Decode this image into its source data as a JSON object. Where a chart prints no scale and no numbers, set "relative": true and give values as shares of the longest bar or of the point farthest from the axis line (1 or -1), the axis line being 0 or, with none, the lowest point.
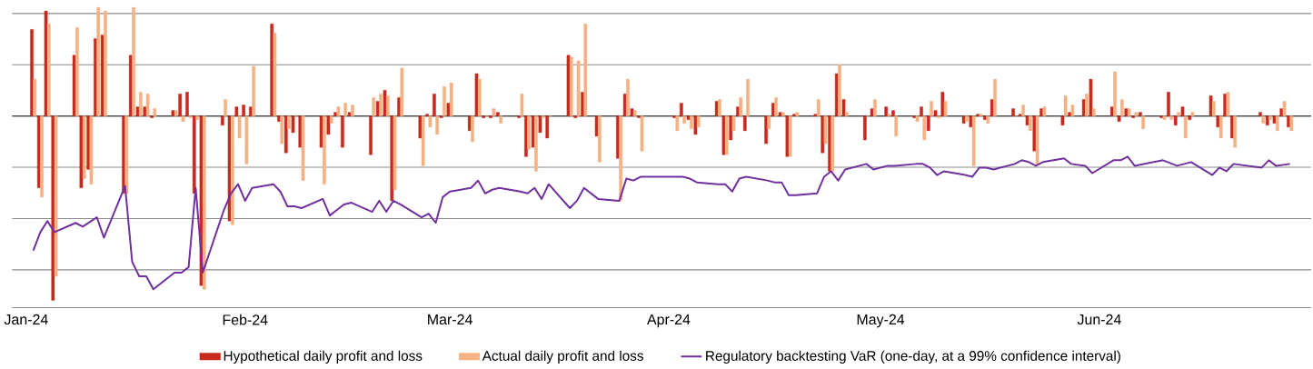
{
  "chart_data": {
    "type": "bar",
    "relative": true,
    "grid": "y",
    "legend": "bottom",
    "tick_labels": "x",
    "xlim": [
      "2023-12-30",
      "2024-07-01"
    ],
    "xticks": [
      {
        "value": "2024-01-01",
        "label": "Jan-24"
      },
      {
        "value": "2024-02-01",
        "label": "Feb-24"
      },
      {
        "value": "2024-03-01",
        "label": "Mar-24"
      },
      {
        "value": "2024-04-01",
        "label": "Apr-24"
      },
      {
        "value": "2024-05-01",
        "label": "May-24"
      },
      {
        "value": "2024-06-01",
        "label": "Jun-24"
      }
    ],
    "x": [
      "2024-01-02",
      "2024-01-03",
      "2024-01-04",
      "2024-01-05",
      "2024-01-08",
      "2024-01-09",
      "2024-01-10",
      "2024-01-11",
      "2024-01-12",
      "2024-01-15",
      "2024-01-16",
      "2024-01-17",
      "2024-01-18",
      "2024-01-19",
      "2024-01-22",
      "2024-01-23",
      "2024-01-24",
      "2024-01-25",
      "2024-01-26",
      "2024-01-29",
      "2024-01-30",
      "2024-01-31",
      "2024-02-01",
      "2024-02-02",
      "2024-02-05",
      "2024-02-06",
      "2024-02-07",
      "2024-02-08",
      "2024-02-09",
      "2024-02-12",
      "2024-02-13",
      "2024-02-14",
      "2024-02-15",
      "2024-02-16",
      "2024-02-19",
      "2024-02-20",
      "2024-02-21",
      "2024-02-22",
      "2024-02-23",
      "2024-02-26",
      "2024-02-27",
      "2024-02-28",
      "2024-02-29",
      "2024-03-01",
      "2024-03-04",
      "2024-03-05",
      "2024-03-06",
      "2024-03-07",
      "2024-03-08",
      "2024-03-11",
      "2024-03-12",
      "2024-03-13",
      "2024-03-14",
      "2024-03-15",
      "2024-03-18",
      "2024-03-19",
      "2024-03-20",
      "2024-03-22",
      "2024-03-25",
      "2024-03-26",
      "2024-03-27",
      "2024-03-28",
      "2024-04-02",
      "2024-04-03",
      "2024-04-04",
      "2024-04-05",
      "2024-04-08",
      "2024-04-09",
      "2024-04-10",
      "2024-04-11",
      "2024-04-12",
      "2024-04-15",
      "2024-04-16",
      "2024-04-17",
      "2024-04-18",
      "2024-04-19",
      "2024-04-22",
      "2024-04-23",
      "2024-04-24",
      "2024-04-25",
      "2024-04-26",
      "2024-04-29",
      "2024-04-30",
      "2024-05-02",
      "2024-05-03",
      "2024-05-06",
      "2024-05-07",
      "2024-05-08",
      "2024-05-09",
      "2024-05-10",
      "2024-05-13",
      "2024-05-14",
      "2024-05-15",
      "2024-05-16",
      "2024-05-17",
      "2024-05-20",
      "2024-05-21",
      "2024-05-22",
      "2024-05-23",
      "2024-05-24",
      "2024-05-27",
      "2024-05-28",
      "2024-05-30",
      "2024-05-31",
      "2024-06-03",
      "2024-06-04",
      "2024-06-05",
      "2024-06-06",
      "2024-06-07",
      "2024-06-10",
      "2024-06-11",
      "2024-06-12",
      "2024-06-13",
      "2024-06-14",
      "2024-06-17",
      "2024-06-18",
      "2024-06-19",
      "2024-06-20",
      "2024-06-24",
      "2024-06-25",
      "2024-06-26",
      "2024-06-27",
      "2024-06-28"
    ],
    "series": [
      {
        "name": "Hypothetical daily profit and loss",
        "color": "#c8281e",
        "values": [
          0.47,
          -0.39,
          0.57,
          -1.0,
          0.33,
          -0.39,
          -0.29,
          0.42,
          0.44,
          -0.42,
          0.33,
          0.05,
          0.05,
          -0.01,
          0.03,
          0.12,
          0.13,
          -0.42,
          -0.92,
          -0.05,
          -0.57,
          0.05,
          0.06,
          0.05,
          0.5,
          -0.03,
          -0.2,
          -0.09,
          -0.17,
          -0.17,
          -0.1,
          0.02,
          -0.17,
          0.02,
          -0.21,
          0.08,
          0.14,
          -0.46,
          0.1,
          -0.12,
          0.01,
          0.12,
          -0.01,
          0.07,
          -0.08,
          0.23,
          -0.01,
          -0.01,
          0.02,
          -0.01,
          -0.22,
          -0.17,
          -0.09,
          -0.12,
          0.33,
          -0.01,
          0.13,
          -0.11,
          -0.23,
          0.12,
          0.04,
          -0.01,
          -0.01,
          0.07,
          -0.02,
          -0.1,
          0.08,
          -0.21,
          -0.13,
          0.05,
          -0.08,
          -0.15,
          0.07,
          0.02,
          -0.22,
          0.01,
          0.01,
          -0.2,
          -0.3,
          0.23,
          0.09,
          -0.13,
          0.04,
          0.05,
          0.03,
          -0.01,
          0.05,
          -0.08,
          0.03,
          0.13,
          -0.04,
          -0.06,
          0.01,
          -0.02,
          0.09,
          0.04,
          0.01,
          -0.05,
          -0.19,
          0.04,
          -0.05,
          0.02,
          0.09,
          0.2,
          0.05,
          -0.03,
          0.04,
          -0.01,
          0.02,
          -0.01,
          0.13,
          -0.05,
          0.05,
          -0.02,
          0.11,
          -0.06,
          0.12,
          -0.12,
          0.02,
          -0.05,
          -0.04,
          0.04,
          -0.06
        ]
      },
      {
        "name": "Actual daily profit and loss",
        "color": "#f4b183",
        "values": [
          0.2,
          -0.44,
          0.5,
          -0.87,
          0.48,
          -0.34,
          -0.37,
          0.59,
          0.57,
          -0.42,
          0.59,
          0.13,
          0.12,
          0.04,
          0.03,
          -0.03,
          -0.01,
          -0.02,
          -0.94,
          0.09,
          -0.59,
          -0.12,
          -0.26,
          0.27,
          0.45,
          -0.15,
          -0.07,
          0,
          -0.35,
          -0.37,
          -0.04,
          0.05,
          0.07,
          0.06,
          0.1,
          0.12,
          0.11,
          -0.4,
          0.26,
          -0.27,
          -0.06,
          -0.1,
          0.16,
          0.18,
          -0.14,
          0.2,
          0,
          0.04,
          -0.04,
          0.12,
          -0.18,
          -0.3,
          -0.01,
          0,
          0.32,
          0.3,
          0.5,
          -0.25,
          -0.46,
          0.2,
          0.03,
          -0.19,
          -0.08,
          -0.04,
          -0.07,
          -0.06,
          0.09,
          -0.21,
          -0.08,
          0.1,
          0.2,
          -0.07,
          0.1,
          0.02,
          -0.22,
          0.02,
          0.09,
          -0.15,
          -0.3,
          0.28,
          0.02,
          0,
          0.09,
          0.01,
          -0.11,
          -0.03,
          -0.13,
          0.08,
          -0.01,
          0.08,
          -0.03,
          -0.27,
          0.01,
          -0.04,
          0.2,
          0,
          0.06,
          -0.08,
          -0.26,
          0.05,
          0.11,
          0.06,
          0.12,
          0.04,
          0.24,
          0.09,
          0.04,
          0.02,
          -0.07,
          -0.02,
          -0.02,
          0.02,
          -0.12,
          0.02,
          0.08,
          -0.12,
          0.13,
          -0.17,
          -0.04,
          -0.02,
          -0.08,
          0.08,
          -0.08
        ]
      },
      {
        "name": "Regulatory backtesting VaR (one-day, at a 99% confidence interval)",
        "type": "line",
        "color": "#7030a0",
        "x": [
          "2024-01-02",
          "2024-01-03",
          "2024-01-04",
          "2024-01-05",
          "2024-01-08",
          "2024-01-09",
          "2024-01-11",
          "2024-01-12",
          "2024-01-15",
          "2024-01-16",
          "2024-01-17",
          "2024-01-18",
          "2024-01-19",
          "2024-01-22",
          "2024-01-23",
          "2024-01-24",
          "2024-01-25",
          "2024-01-26",
          "2024-01-29",
          "2024-01-30",
          "2024-01-31",
          "2024-02-01",
          "2024-02-02",
          "2024-02-05",
          "2024-02-06",
          "2024-02-07",
          "2024-02-08",
          "2024-02-09",
          "2024-02-12",
          "2024-02-13",
          "2024-02-14",
          "2024-02-15",
          "2024-02-16",
          "2024-02-19",
          "2024-02-20",
          "2024-02-21",
          "2024-02-22",
          "2024-02-23",
          "2024-02-26",
          "2024-02-27",
          "2024-02-28",
          "2024-02-29",
          "2024-03-01",
          "2024-03-04",
          "2024-03-05",
          "2024-03-06",
          "2024-03-07",
          "2024-03-08",
          "2024-03-11",
          "2024-03-12",
          "2024-03-13",
          "2024-03-14",
          "2024-03-15",
          "2024-03-18",
          "2024-03-19",
          "2024-03-20",
          "2024-03-22",
          "2024-03-25",
          "2024-03-26",
          "2024-03-27",
          "2024-03-28",
          "2024-04-02",
          "2024-04-03",
          "2024-04-04",
          "2024-04-05",
          "2024-04-08",
          "2024-04-09",
          "2024-04-10",
          "2024-04-11",
          "2024-04-12",
          "2024-04-15",
          "2024-04-16",
          "2024-04-17",
          "2024-04-18",
          "2024-04-19",
          "2024-04-22",
          "2024-04-23",
          "2024-04-24",
          "2024-04-25",
          "2024-04-26",
          "2024-04-29",
          "2024-04-30",
          "2024-05-02",
          "2024-05-03",
          "2024-05-06",
          "2024-05-07",
          "2024-05-08",
          "2024-05-09",
          "2024-05-10",
          "2024-05-13",
          "2024-05-14",
          "2024-05-15",
          "2024-05-16",
          "2024-05-17",
          "2024-05-20",
          "2024-05-21",
          "2024-05-22",
          "2024-05-23",
          "2024-05-24",
          "2024-05-27",
          "2024-05-28",
          "2024-05-30",
          "2024-05-31",
          "2024-06-03",
          "2024-06-04",
          "2024-06-05",
          "2024-06-06",
          "2024-06-10",
          "2024-06-12",
          "2024-06-14",
          "2024-06-17",
          "2024-06-18",
          "2024-06-19",
          "2024-06-20",
          "2024-06-24",
          "2024-06-25",
          "2024-06-26",
          "2024-06-28"
        ],
        "values": [
          -0.73,
          -0.63,
          -0.57,
          -0.63,
          -0.58,
          -0.6,
          -0.55,
          -0.66,
          -0.38,
          -0.79,
          -0.87,
          -0.87,
          -0.94,
          -0.85,
          -0.85,
          -0.82,
          -0.39,
          -0.85,
          -0.51,
          -0.42,
          -0.37,
          -0.46,
          -0.39,
          -0.37,
          -0.41,
          -0.49,
          -0.49,
          -0.5,
          -0.45,
          -0.54,
          -0.51,
          -0.48,
          -0.47,
          -0.52,
          -0.46,
          -0.52,
          -0.46,
          -0.48,
          -0.55,
          -0.53,
          -0.58,
          -0.44,
          -0.41,
          -0.39,
          -0.35,
          -0.42,
          -0.4,
          -0.39,
          -0.41,
          -0.42,
          -0.39,
          -0.45,
          -0.37,
          -0.5,
          -0.46,
          -0.39,
          -0.45,
          -0.46,
          -0.34,
          -0.35,
          -0.33,
          -0.33,
          -0.33,
          -0.34,
          -0.36,
          -0.37,
          -0.37,
          -0.41,
          -0.34,
          -0.33,
          -0.35,
          -0.36,
          -0.36,
          -0.43,
          -0.43,
          -0.42,
          -0.33,
          -0.3,
          -0.35,
          -0.29,
          -0.26,
          -0.29,
          -0.27,
          -0.27,
          -0.26,
          -0.26,
          -0.28,
          -0.32,
          -0.3,
          -0.32,
          -0.33,
          -0.28,
          -0.28,
          -0.29,
          -0.26,
          -0.24,
          -0.25,
          -0.27,
          -0.25,
          -0.23,
          -0.26,
          -0.27,
          -0.31,
          -0.24,
          -0.24,
          -0.22,
          -0.27,
          -0.24,
          -0.27,
          -0.25,
          -0.32,
          -0.28,
          -0.3,
          -0.26,
          -0.28,
          -0.24,
          -0.27,
          -0.26
        ]
      }
    ]
  }
}
